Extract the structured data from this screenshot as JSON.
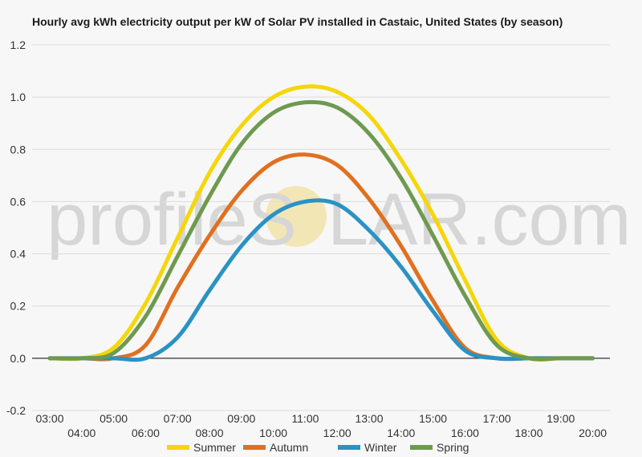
{
  "chart_data": {
    "type": "line",
    "title": "Hourly avg kWh electricity output per kW of Solar PV installed in Castaic, United States (by season)",
    "watermark": {
      "left": "profileS",
      "right": "LAR.com"
    },
    "xlabel": "",
    "ylabel": "",
    "x": [
      "03:00",
      "04:00",
      "05:00",
      "06:00",
      "07:00",
      "08:00",
      "09:00",
      "10:00",
      "11:00",
      "12:00",
      "13:00",
      "14:00",
      "15:00",
      "16:00",
      "17:00",
      "18:00",
      "19:00",
      "20:00"
    ],
    "yticks": [
      "-0.2",
      "0.0",
      "0.2",
      "0.4",
      "0.6",
      "0.8",
      "1.0",
      "1.2"
    ],
    "ylim": [
      -0.2,
      1.2
    ],
    "grid": true,
    "legend_position": "bottom",
    "colors": {
      "Summer": "#f5d60a",
      "Autumn": "#e07020",
      "Winter": "#2a92c4",
      "Spring": "#6e9a50"
    },
    "series": [
      {
        "name": "Summer",
        "values": [
          0.0,
          0.0,
          0.04,
          0.21,
          0.46,
          0.71,
          0.89,
          1.0,
          1.04,
          1.02,
          0.93,
          0.76,
          0.55,
          0.3,
          0.07,
          0.0,
          0.0,
          0.0
        ]
      },
      {
        "name": "Autumn",
        "values": [
          0.0,
          0.0,
          0.0,
          0.05,
          0.27,
          0.47,
          0.64,
          0.75,
          0.78,
          0.74,
          0.61,
          0.43,
          0.22,
          0.04,
          0.0,
          0.0,
          0.0,
          0.0
        ]
      },
      {
        "name": "Winter",
        "values": [
          0.0,
          0.0,
          0.0,
          0.0,
          0.08,
          0.26,
          0.43,
          0.55,
          0.6,
          0.59,
          0.49,
          0.35,
          0.18,
          0.03,
          0.0,
          0.0,
          0.0,
          0.0
        ]
      },
      {
        "name": "Spring",
        "values": [
          0.0,
          0.0,
          0.02,
          0.16,
          0.39,
          0.62,
          0.82,
          0.94,
          0.98,
          0.96,
          0.86,
          0.69,
          0.47,
          0.24,
          0.05,
          0.0,
          0.0,
          0.0
        ]
      }
    ]
  }
}
